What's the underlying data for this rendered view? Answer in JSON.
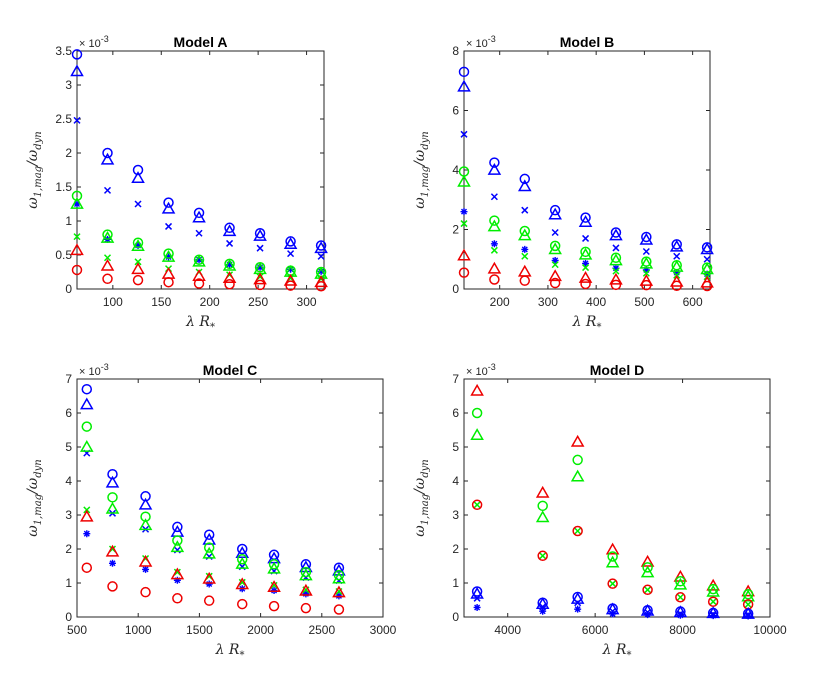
{
  "colors": {
    "blue": "#0000ff",
    "green": "#00ee00",
    "red": "#ee0000",
    "axis": "#262626"
  },
  "chart_data": [
    {
      "type": "scatter",
      "title": "Model A",
      "xlabel_main": "λ R",
      "xlabel_sub": "*",
      "ylabel_main": "ω",
      "ylabel_sub1": "1,mag",
      "ylabel_mid": "/ω",
      "ylabel_sub2": "dyn",
      "multiplier_base": "× 10",
      "multiplier_exp": "-3",
      "xlim": [
        63,
        318
      ],
      "ylim": [
        0,
        3.5
      ],
      "xticks": [
        100,
        150,
        200,
        250,
        300
      ],
      "xtick_labels": [
        "100",
        "150",
        "200",
        "250",
        "300"
      ],
      "yticks": [
        0,
        0.5,
        1,
        1.5,
        2,
        2.5,
        3,
        3.5
      ],
      "ytick_labels": [
        "0",
        "0.5",
        "1",
        "1.5",
        "2",
        "2.5",
        "3",
        "3.5"
      ],
      "x": [
        63,
        94.5,
        126,
        157.5,
        189,
        220.5,
        252,
        283.5,
        315
      ],
      "series": [
        {
          "name": "blue-circle",
          "color": "blue",
          "marker": "circle",
          "values": [
            3.45,
            2.0,
            1.75,
            1.27,
            1.12,
            0.9,
            0.82,
            0.7,
            0.64
          ]
        },
        {
          "name": "blue-triangle",
          "color": "blue",
          "marker": "triangle",
          "values": [
            3.2,
            1.9,
            1.63,
            1.18,
            1.05,
            0.85,
            0.78,
            0.66,
            0.6
          ]
        },
        {
          "name": "blue-cross",
          "color": "blue",
          "marker": "x",
          "values": [
            2.48,
            1.45,
            1.25,
            0.92,
            0.82,
            0.67,
            0.6,
            0.52,
            0.48
          ]
        },
        {
          "name": "blue-star",
          "color": "blue",
          "marker": "star",
          "values": [
            1.25,
            0.73,
            0.64,
            0.47,
            0.43,
            0.36,
            0.32,
            0.29,
            0.26
          ]
        },
        {
          "name": "green-circle",
          "color": "green",
          "marker": "circle",
          "values": [
            1.37,
            0.8,
            0.68,
            0.52,
            0.43,
            0.37,
            0.32,
            0.27,
            0.25
          ]
        },
        {
          "name": "green-triangle",
          "color": "green",
          "marker": "triangle",
          "values": [
            1.25,
            0.75,
            0.63,
            0.47,
            0.4,
            0.34,
            0.29,
            0.25,
            0.22
          ]
        },
        {
          "name": "green-cross",
          "color": "green",
          "marker": "x",
          "values": [
            0.77,
            0.46,
            0.4,
            0.3,
            0.25,
            0.21,
            0.18,
            0.16,
            0.15
          ]
        },
        {
          "name": "red-triangle",
          "color": "red",
          "marker": "triangle",
          "values": [
            0.57,
            0.34,
            0.29,
            0.22,
            0.19,
            0.16,
            0.14,
            0.12,
            0.1
          ]
        },
        {
          "name": "red-circle",
          "color": "red",
          "marker": "circle",
          "values": [
            0.28,
            0.15,
            0.13,
            0.1,
            0.08,
            0.07,
            0.06,
            0.05,
            0.04
          ]
        }
      ]
    },
    {
      "type": "scatter",
      "title": "Model B",
      "xlabel_main": "λ R",
      "xlabel_sub": "*",
      "ylabel_main": "ω",
      "ylabel_sub1": "1,mag",
      "ylabel_mid": "/ω",
      "ylabel_sub2": "dyn",
      "multiplier_base": "× 10",
      "multiplier_exp": "-3",
      "xlim": [
        126,
        636
      ],
      "ylim": [
        0,
        8
      ],
      "xticks": [
        200,
        300,
        400,
        500,
        600
      ],
      "xtick_labels": [
        "200",
        "300",
        "400",
        "500",
        "600"
      ],
      "yticks": [
        0,
        2,
        4,
        6,
        8
      ],
      "ytick_labels": [
        "0",
        "2",
        "4",
        "6",
        "8"
      ],
      "x": [
        126,
        189,
        252,
        315,
        378,
        441,
        504,
        567,
        630
      ],
      "series": [
        {
          "name": "blue-circle",
          "color": "blue",
          "marker": "circle",
          "values": [
            7.3,
            4.25,
            3.7,
            2.65,
            2.4,
            1.9,
            1.75,
            1.5,
            1.4
          ]
        },
        {
          "name": "blue-triangle",
          "color": "blue",
          "marker": "triangle",
          "values": [
            6.8,
            4.0,
            3.45,
            2.5,
            2.25,
            1.8,
            1.65,
            1.42,
            1.33
          ]
        },
        {
          "name": "blue-cross",
          "color": "blue",
          "marker": "x",
          "values": [
            5.2,
            3.1,
            2.65,
            1.9,
            1.7,
            1.38,
            1.26,
            1.1,
            1.0
          ]
        },
        {
          "name": "blue-star",
          "color": "blue",
          "marker": "star",
          "values": [
            2.6,
            1.52,
            1.33,
            0.96,
            0.86,
            0.7,
            0.64,
            0.55,
            0.5
          ]
        },
        {
          "name": "green-circle",
          "color": "green",
          "marker": "circle",
          "values": [
            3.95,
            2.3,
            1.95,
            1.45,
            1.25,
            1.05,
            0.92,
            0.8,
            0.72
          ]
        },
        {
          "name": "green-triangle",
          "color": "green",
          "marker": "triangle",
          "values": [
            3.6,
            2.1,
            1.8,
            1.33,
            1.15,
            0.96,
            0.85,
            0.74,
            0.66
          ]
        },
        {
          "name": "green-cross",
          "color": "green",
          "marker": "x",
          "values": [
            2.2,
            1.3,
            1.1,
            0.82,
            0.72,
            0.6,
            0.53,
            0.46,
            0.41
          ]
        },
        {
          "name": "red-triangle",
          "color": "red",
          "marker": "triangle",
          "values": [
            1.12,
            0.68,
            0.58,
            0.43,
            0.37,
            0.31,
            0.27,
            0.24,
            0.21
          ]
        },
        {
          "name": "red-circle",
          "color": "red",
          "marker": "circle",
          "values": [
            0.55,
            0.32,
            0.28,
            0.2,
            0.17,
            0.14,
            0.13,
            0.11,
            0.1
          ]
        }
      ]
    },
    {
      "type": "scatter",
      "title": "Model C",
      "xlabel_main": "λ R",
      "xlabel_sub": "*",
      "ylabel_main": "ω",
      "ylabel_sub1": "1,mag",
      "ylabel_mid": "/ω",
      "ylabel_sub2": "dyn",
      "multiplier_base": "× 10",
      "multiplier_exp": "-3",
      "xlim": [
        500,
        3000
      ],
      "ylim": [
        0,
        7
      ],
      "xticks": [
        500,
        1000,
        1500,
        2000,
        2500,
        3000
      ],
      "xtick_labels": [
        "500",
        "1000",
        "1500",
        "2000",
        "2500",
        "3000"
      ],
      "yticks": [
        0,
        1,
        2,
        3,
        4,
        5,
        6,
        7
      ],
      "ytick_labels": [
        "0",
        "1",
        "2",
        "3",
        "4",
        "5",
        "6",
        "7"
      ],
      "x": [
        580,
        790,
        1060,
        1320,
        1580,
        1850,
        2110,
        2370,
        2640
      ],
      "series": [
        {
          "name": "blue-circle",
          "color": "blue",
          "marker": "circle",
          "values": [
            6.7,
            4.2,
            3.55,
            2.65,
            2.42,
            2.0,
            1.83,
            1.55,
            1.45
          ]
        },
        {
          "name": "blue-triangle",
          "color": "blue",
          "marker": "triangle",
          "values": [
            6.25,
            3.95,
            3.3,
            2.5,
            2.27,
            1.88,
            1.72,
            1.46,
            1.36
          ]
        },
        {
          "name": "blue-cross",
          "color": "blue",
          "marker": "x",
          "values": [
            4.82,
            3.05,
            2.58,
            1.97,
            1.78,
            1.48,
            1.35,
            1.16,
            1.07
          ]
        },
        {
          "name": "blue-star",
          "color": "blue",
          "marker": "star",
          "values": [
            2.45,
            1.58,
            1.4,
            1.08,
            0.97,
            0.83,
            0.78,
            0.68,
            0.62
          ]
        },
        {
          "name": "green-circle",
          "color": "green",
          "marker": "circle",
          "values": [
            5.6,
            3.52,
            2.95,
            2.25,
            2.04,
            1.7,
            1.55,
            1.32,
            1.23
          ]
        },
        {
          "name": "green-triangle",
          "color": "green",
          "marker": "triangle",
          "values": [
            5.0,
            3.18,
            2.7,
            2.05,
            1.86,
            1.56,
            1.42,
            1.22,
            1.13
          ]
        },
        {
          "name": "green-cross",
          "color": "green",
          "marker": "x",
          "values": [
            3.15,
            2.0,
            1.72,
            1.32,
            1.2,
            1.02,
            0.93,
            0.8,
            0.75
          ]
        },
        {
          "name": "red-triangle",
          "color": "red",
          "marker": "triangle",
          "values": [
            2.95,
            1.92,
            1.62,
            1.25,
            1.12,
            0.96,
            0.88,
            0.77,
            0.72
          ]
        },
        {
          "name": "red-circle",
          "color": "red",
          "marker": "circle",
          "values": [
            1.45,
            0.9,
            0.73,
            0.55,
            0.48,
            0.38,
            0.32,
            0.26,
            0.22
          ]
        }
      ]
    },
    {
      "type": "scatter",
      "title": "Model D",
      "xlabel_main": "λ R",
      "xlabel_sub": "*",
      "ylabel_main": "ω",
      "ylabel_sub1": "1,mag",
      "ylabel_mid": "/ω",
      "ylabel_sub2": "dyn",
      "multiplier_base": "× 10",
      "multiplier_exp": "-3",
      "xlim": [
        3000,
        10000
      ],
      "ylim": [
        0,
        7
      ],
      "xticks": [
        4000,
        6000,
        8000,
        10000
      ],
      "xtick_labels": [
        "4000",
        "6000",
        "8000",
        "10000"
      ],
      "yticks": [
        0,
        1,
        2,
        3,
        4,
        5,
        6,
        7
      ],
      "ytick_labels": [
        "0",
        "1",
        "2",
        "3",
        "4",
        "5",
        "6",
        "7"
      ],
      "x": [
        3300,
        4800,
        5600,
        6400,
        7200,
        7950,
        8700,
        9500
      ],
      "series": [
        {
          "name": "red-triangle",
          "color": "red",
          "marker": "triangle",
          "values": [
            6.65,
            3.65,
            5.15,
            1.98,
            1.62,
            1.18,
            0.92,
            0.75
          ]
        },
        {
          "name": "green-circle",
          "color": "green",
          "marker": "circle",
          "values": [
            6.0,
            3.27,
            4.62,
            1.78,
            1.46,
            1.05,
            0.82,
            0.67
          ]
        },
        {
          "name": "green-triangle",
          "color": "green",
          "marker": "triangle",
          "values": [
            5.35,
            2.93,
            4.13,
            1.6,
            1.31,
            0.95,
            0.74,
            0.6
          ]
        },
        {
          "name": "green-cross",
          "color": "green",
          "marker": "x",
          "values": [
            3.3,
            1.8,
            2.53,
            0.98,
            0.8,
            0.58,
            0.45,
            0.37
          ]
        },
        {
          "name": "red-circle",
          "color": "red",
          "marker": "circle",
          "values": [
            3.3,
            1.8,
            2.53,
            0.98,
            0.8,
            0.58,
            0.45,
            0.37
          ]
        },
        {
          "name": "blue-circle",
          "color": "blue",
          "marker": "circle",
          "values": [
            0.75,
            0.42,
            0.59,
            0.25,
            0.2,
            0.16,
            0.12,
            0.1
          ]
        },
        {
          "name": "blue-triangle",
          "color": "blue",
          "marker": "triangle",
          "values": [
            0.68,
            0.38,
            0.53,
            0.22,
            0.18,
            0.14,
            0.11,
            0.09
          ]
        },
        {
          "name": "blue-cross",
          "color": "blue",
          "marker": "x",
          "values": [
            0.55,
            0.3,
            0.42,
            0.17,
            0.14,
            0.1,
            0.08,
            0.07
          ]
        },
        {
          "name": "blue-star",
          "color": "blue",
          "marker": "star",
          "values": [
            0.28,
            0.17,
            0.23,
            0.09,
            0.07,
            0.05,
            0.04,
            0.03
          ]
        }
      ]
    }
  ]
}
